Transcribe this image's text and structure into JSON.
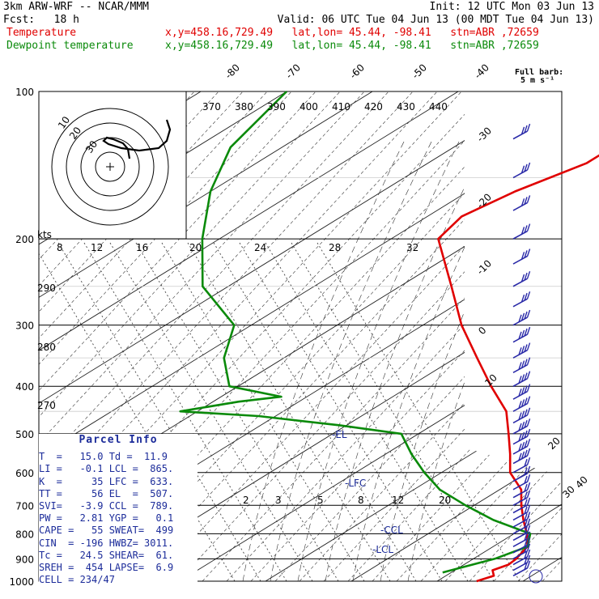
{
  "header": {
    "line1_left": "3km ARW-WRF -- NCAR/MMM",
    "line1_right": "Init: 12 UTC Mon 03 Jun 13",
    "line2_left": "Fcst:   18 h",
    "line2_right": "Valid: 06 UTC Tue 04 Jun 13 (00 MDT Tue 04 Jun 13)",
    "temp_label": "Temperature",
    "temp_info": "x,y=458.16,729.49   lat,lon= 45.44, -98.41   stn=ABR ,72659",
    "dew_label": "Dewpoint temperature",
    "dew_info": "x,y=458.16,729.49   lat,lon= 45.44, -98.41   stn=ABR ,72659",
    "barb_note_1": "Full barb:",
    "barb_note_2": "5 m s⁻¹"
  },
  "colors": {
    "temperature": "#e00000",
    "dewpoint": "#0a8a0a",
    "parcel_info": "#1c2c9a",
    "barbs": "#2a2aa8"
  },
  "chart_data": {
    "type": "line",
    "chart_kind": "skew-T log-p sounding",
    "y_axis": {
      "label": "pressure (hPa)",
      "ticks": [
        100,
        200,
        300,
        400,
        500,
        600,
        700,
        800,
        900,
        1000
      ],
      "scale": "log"
    },
    "isotherm_labels": [
      "-80",
      "-70",
      "-60",
      "-50",
      "-40",
      "-30",
      "-20",
      "-10",
      "0",
      "10",
      "20",
      "30",
      "40"
    ],
    "theta_labels": [
      "370",
      "380",
      "390",
      "400",
      "410",
      "420",
      "430",
      "440"
    ],
    "theta_labels_left": [
      "290",
      "280",
      "270"
    ],
    "hodograph_speed_labels": [
      "8",
      "12",
      "16",
      "20",
      "24",
      "28",
      "32"
    ],
    "hodograph_kts_label": "kts",
    "hodograph_ring_labels": [
      "30",
      "20",
      "10"
    ],
    "mixing_ratio_labels": [
      "2",
      "3",
      "5",
      "8",
      "12",
      "20"
    ],
    "series": [
      {
        "name": "Temperature",
        "points": [
          [
            1000,
            14.6
          ],
          [
            975,
            15.6
          ],
          [
            950,
            14.4
          ],
          [
            925,
            15.2
          ],
          [
            900,
            15.0
          ],
          [
            850,
            14.0
          ],
          [
            800,
            11.5
          ],
          [
            750,
            8.5
          ],
          [
            700,
            5.5
          ],
          [
            650,
            2.5
          ],
          [
            600,
            -2.0
          ],
          [
            550,
            -5.5
          ],
          [
            500,
            -9.5
          ],
          [
            450,
            -14.0
          ],
          [
            400,
            -20.5
          ],
          [
            350,
            -27.5
          ],
          [
            300,
            -35.5
          ],
          [
            250,
            -44.0
          ],
          [
            200,
            -54.5
          ],
          [
            180,
            -56.0
          ],
          [
            160,
            -54.5
          ],
          [
            140,
            -51.5
          ],
          [
            120,
            -51.5
          ],
          [
            100,
            -55.0
          ]
        ]
      },
      {
        "name": "Dewpoint temperature",
        "points": [
          [
            960,
            9.0
          ],
          [
            925,
            11.0
          ],
          [
            900,
            12.5
          ],
          [
            850,
            14.0
          ],
          [
            800,
            11.9
          ],
          [
            750,
            5.0
          ],
          [
            700,
            -1.0
          ],
          [
            650,
            -7.0
          ],
          [
            600,
            -12.0
          ],
          [
            550,
            -17.0
          ],
          [
            500,
            -22.0
          ],
          [
            480,
            -31.0
          ],
          [
            460,
            -42.0
          ],
          [
            450,
            -52.0
          ],
          [
            430,
            -47.0
          ],
          [
            420,
            -43.0
          ],
          [
            400,
            -51.0
          ],
          [
            350,
            -57.0
          ],
          [
            300,
            -62.0
          ],
          [
            250,
            -73.0
          ],
          [
            200,
            -82.0
          ],
          [
            160,
            -90.0
          ],
          [
            130,
            -96.0
          ],
          [
            100,
            -100.0
          ]
        ]
      }
    ],
    "levels": {
      "LFC": "-LFC",
      "CCL": "-CCL",
      "LCL": "-LCL",
      "EL": "-EL"
    }
  },
  "parcel_info": {
    "title": "Parcel Info",
    "rows": [
      "T  =   15.0 Td =  11.9",
      "LI =   -0.1 LCL =  865.",
      "K  =     35 LFC =  633.",
      "TT =     56 EL  =  507.",
      "SVI=   -3.9 CCL =  789.",
      "PW =   2.81 YGP =   0.1",
      "CAPE =   55 SWEAT=  499",
      "CIN  = -196 HWBZ= 3011.",
      "Tc =   24.5 SHEAR=  61.",
      "SREH =  454 LAPSE=  6.9",
      "CELL = 234/47"
    ]
  }
}
